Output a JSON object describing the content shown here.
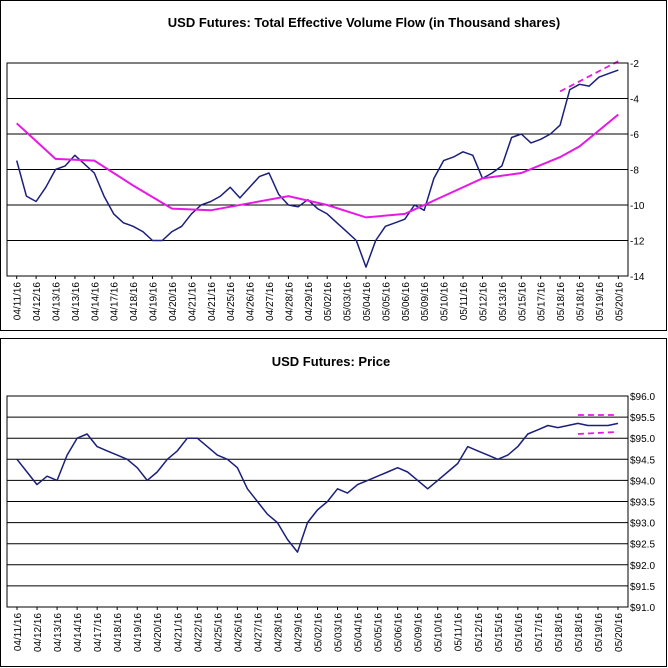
{
  "chart_data": [
    {
      "type": "line",
      "title": "USD Futures: Total Effective Volume Flow (in Thousand shares)",
      "ylim": [
        -14,
        -2
      ],
      "yticks": [
        -2,
        -4,
        -6,
        -8,
        -10,
        -12,
        -14
      ],
      "ytick_labels": [
        "-2",
        "-4",
        "-6",
        "-8",
        "-10",
        "-12",
        "-14"
      ],
      "categories": [
        "04/11/16",
        "04/12/16",
        "04/13/16",
        "04/13/16",
        "04/14/16",
        "04/17/16",
        "04/18/16",
        "04/19/16",
        "04/20/16",
        "04/21/16",
        "04/21/16",
        "04/25/16",
        "04/26/16",
        "04/27/16",
        "04/28/16",
        "04/29/16",
        "05/02/16",
        "05/03/16",
        "05/04/16",
        "05/05/16",
        "05/06/16",
        "05/09/16",
        "05/10/16",
        "05/11/16",
        "05/12/16",
        "05/13/16",
        "05/15/16",
        "05/17/16",
        "05/18/16",
        "05/18/16",
        "05/19/16",
        "05/20/16"
      ],
      "grid": true,
      "legend": "none",
      "series": [
        {
          "x": [
            0,
            0.5,
            1,
            1.5,
            2,
            2.5,
            3,
            3.5,
            4,
            4.5,
            5,
            5.5,
            6,
            6.5,
            7,
            7.5,
            8,
            8.5,
            9,
            9.5,
            10,
            10.5,
            11,
            11.5,
            12,
            12.5,
            13,
            13.5,
            14,
            14.5,
            15,
            15.5,
            16,
            16.5,
            17,
            17.5,
            18,
            18.5,
            19,
            19.5,
            20,
            20.5,
            21,
            21.5,
            22,
            22.5,
            23,
            23.5,
            24,
            24.5,
            25,
            25.5,
            26,
            26.5,
            27,
            27.5,
            28,
            28.5,
            29,
            29.5,
            30,
            30.5,
            31
          ],
          "values": [
            -7.5,
            -9.5,
            -9.8,
            -9.0,
            -8.0,
            -7.8,
            -7.2,
            -7.7,
            -8.2,
            -9.5,
            -10.5,
            -11.0,
            -11.2,
            -11.5,
            -12.0,
            -12.0,
            -11.5,
            -11.2,
            -10.5,
            -10.0,
            -9.8,
            -9.5,
            -9.0,
            -9.6,
            -9.0,
            -8.4,
            -8.2,
            -9.4,
            -10.0,
            -10.1,
            -9.7,
            -10.2,
            -10.5,
            -11.0,
            -11.5,
            -12.0,
            -13.5,
            -12.0,
            -11.2,
            -11.0,
            -10.8,
            -10.0,
            -10.3,
            -8.5,
            -7.5,
            -7.3,
            -7.0,
            -7.2,
            -8.5,
            -8.2,
            -7.8,
            -6.2,
            -6.0,
            -6.5,
            -6.3,
            -6.0,
            -5.5,
            -3.5,
            -3.2,
            -3.3,
            -2.8,
            -2.6,
            -2.4
          ],
          "color": "#1a1f7a"
        },
        {
          "x": [
            0,
            2,
            4,
            6,
            8,
            10,
            12,
            14,
            16,
            18,
            20,
            22,
            24,
            26,
            28,
            29,
            30,
            31
          ],
          "values": [
            -5.4,
            -7.4,
            -7.5,
            -8.9,
            -10.2,
            -10.3,
            -9.9,
            -9.5,
            -10.0,
            -10.7,
            -10.5,
            -9.5,
            -8.5,
            -8.2,
            -7.3,
            -6.7,
            -5.8,
            -4.9
          ],
          "color": "#e619e6"
        },
        {
          "x": [
            28,
            31
          ],
          "values": [
            -3.6,
            -1.9
          ],
          "color": "#e619e6"
        }
      ]
    },
    {
      "type": "line",
      "title": "USD Futures: Price",
      "ylim": [
        91.0,
        96.0
      ],
      "yticks": [
        96.0,
        95.5,
        95.0,
        94.5,
        94.0,
        93.5,
        93.0,
        92.5,
        92.0,
        91.5,
        91.0
      ],
      "ytick_labels": [
        "$96.0",
        "$95.5",
        "$95.0",
        "$94.5",
        "$94.0",
        "$93.5",
        "$93.0",
        "$92.5",
        "$92.0",
        "$91.5",
        "$91.0"
      ],
      "categories": [
        "04/11/16",
        "04/12/16",
        "04/13/16",
        "04/14/16",
        "04/17/16",
        "04/18/16",
        "04/19/16",
        "04/20/16",
        "04/21/16",
        "04/22/16",
        "04/25/16",
        "04/26/16",
        "04/27/16",
        "04/28/16",
        "04/29/16",
        "05/02/16",
        "05/03/16",
        "05/04/16",
        "05/05/16",
        "05/06/16",
        "05/09/16",
        "05/10/16",
        "05/11/16",
        "05/12/16",
        "05/15/16",
        "05/16/16",
        "05/17/16",
        "05/18/16",
        "05/18/16",
        "05/19/16",
        "05/20/16"
      ],
      "grid": true,
      "legend": "none",
      "series": [
        {
          "x": [
            0,
            0.5,
            1,
            1.5,
            2,
            2.5,
            3,
            3.5,
            4,
            4.5,
            5,
            5.5,
            6,
            6.5,
            7,
            7.5,
            8,
            8.5,
            9,
            9.5,
            10,
            10.5,
            11,
            11.5,
            12,
            12.5,
            13,
            13.5,
            14,
            14.5,
            15,
            15.5,
            16,
            16.5,
            17,
            17.5,
            18,
            18.5,
            19,
            19.5,
            20,
            20.5,
            21,
            21.5,
            22,
            22.5,
            23,
            23.5,
            24,
            24.5,
            25,
            25.5,
            26,
            26.5,
            27,
            27.5,
            28,
            28.5,
            29,
            29.5,
            30
          ],
          "values": [
            94.5,
            94.2,
            93.9,
            94.1,
            94.0,
            94.6,
            95.0,
            95.1,
            94.8,
            94.7,
            94.6,
            94.5,
            94.3,
            94.0,
            94.2,
            94.5,
            94.7,
            95.0,
            95.0,
            94.8,
            94.6,
            94.5,
            94.3,
            93.8,
            93.5,
            93.2,
            93.0,
            92.6,
            92.3,
            93.0,
            93.3,
            93.5,
            93.8,
            93.7,
            93.9,
            94.0,
            94.1,
            94.2,
            94.3,
            94.2,
            94.0,
            93.8,
            94.0,
            94.2,
            94.4,
            94.8,
            94.7,
            94.6,
            94.5,
            94.6,
            94.8,
            95.1,
            95.2,
            95.3,
            95.25,
            95.3,
            95.35,
            95.3,
            95.3,
            95.3,
            95.35
          ],
          "color": "#1a1f7a"
        },
        {
          "x": [
            28,
            30
          ],
          "values": [
            95.55,
            95.55
          ],
          "color": "#e619e6"
        },
        {
          "x": [
            28,
            30
          ],
          "values": [
            95.1,
            95.15
          ],
          "color": "#e619e6"
        }
      ]
    }
  ]
}
